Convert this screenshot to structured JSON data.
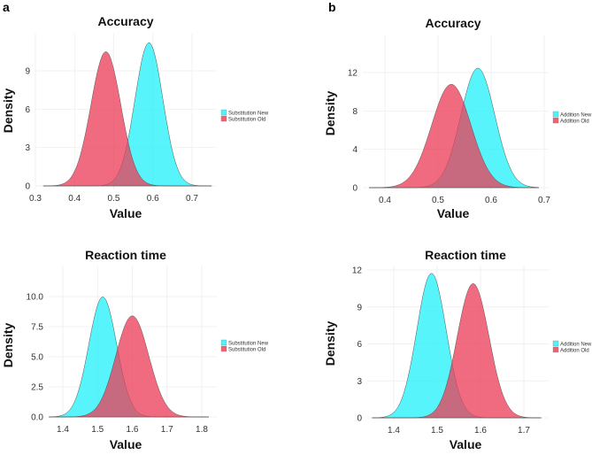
{
  "chart_data": [
    {
      "panel": "a",
      "type": "area",
      "title": "Accuracy",
      "xlabel": "Value",
      "ylabel": "Density",
      "xticks": [
        "0.3",
        "0.4",
        "0.5",
        "0.6",
        "0.7"
      ],
      "yticks": [
        "0",
        "3",
        "6",
        "9"
      ],
      "xlim": [
        0.32,
        0.75
      ],
      "ylim": [
        0,
        11.5
      ],
      "legend": "right",
      "series": [
        {
          "name": "Substitution New",
          "color": "#1ff2fa",
          "mean": 0.59,
          "sd": 0.0356
        },
        {
          "name": "Substitution Old",
          "color": "#ec3a55",
          "mean": 0.48,
          "sd": 0.038
        }
      ]
    },
    {
      "panel": "b",
      "type": "area",
      "title": "Accuracy",
      "xlabel": "Value",
      "ylabel": "Density",
      "xticks": [
        "0.4",
        "0.5",
        "0.6",
        "0.7"
      ],
      "yticks": [
        "0",
        "4",
        "8",
        "12"
      ],
      "xlim": [
        0.37,
        0.69
      ],
      "ylim": [
        0,
        13
      ],
      "legend": "right",
      "series": [
        {
          "name": "Addition New",
          "color": "#1ff2fa",
          "mean": 0.575,
          "sd": 0.032
        },
        {
          "name": "Addition Old",
          "color": "#ec3a55",
          "mean": 0.525,
          "sd": 0.037
        }
      ]
    },
    {
      "panel": "a",
      "type": "area",
      "title": "Reaction time",
      "xlabel": "Value",
      "ylabel": "Density",
      "xticks": [
        "1.4",
        "1.5",
        "1.6",
        "1.7",
        "1.8"
      ],
      "yticks": [
        "0.0",
        "2.5",
        "5.0",
        "7.5",
        "10.0"
      ],
      "xlim": [
        1.36,
        1.82
      ],
      "ylim": [
        0,
        10.3
      ],
      "legend": "right",
      "series": [
        {
          "name": "Substitution New",
          "color": "#1ff2fa",
          "mean": 1.515,
          "sd": 0.04
        },
        {
          "name": "Substitution Old",
          "color": "#ec3a55",
          "mean": 1.6,
          "sd": 0.0475
        }
      ]
    },
    {
      "panel": "b",
      "type": "area",
      "title": "Reaction time",
      "xlabel": "Value",
      "ylabel": "Density",
      "xticks": [
        "1.4",
        "1.5",
        "1.6",
        "1.7"
      ],
      "yticks": [
        "0",
        "3",
        "6",
        "9",
        "12"
      ],
      "xlim": [
        1.35,
        1.74
      ],
      "ylim": [
        0,
        12.4
      ],
      "legend": "right",
      "series": [
        {
          "name": "Addition New",
          "color": "#1ff2fa",
          "mean": 1.487,
          "sd": 0.034
        },
        {
          "name": "Addition Old",
          "color": "#ec3a55",
          "mean": 1.583,
          "sd": 0.0366
        }
      ]
    }
  ],
  "labels": {
    "a": "a",
    "b": "b"
  }
}
